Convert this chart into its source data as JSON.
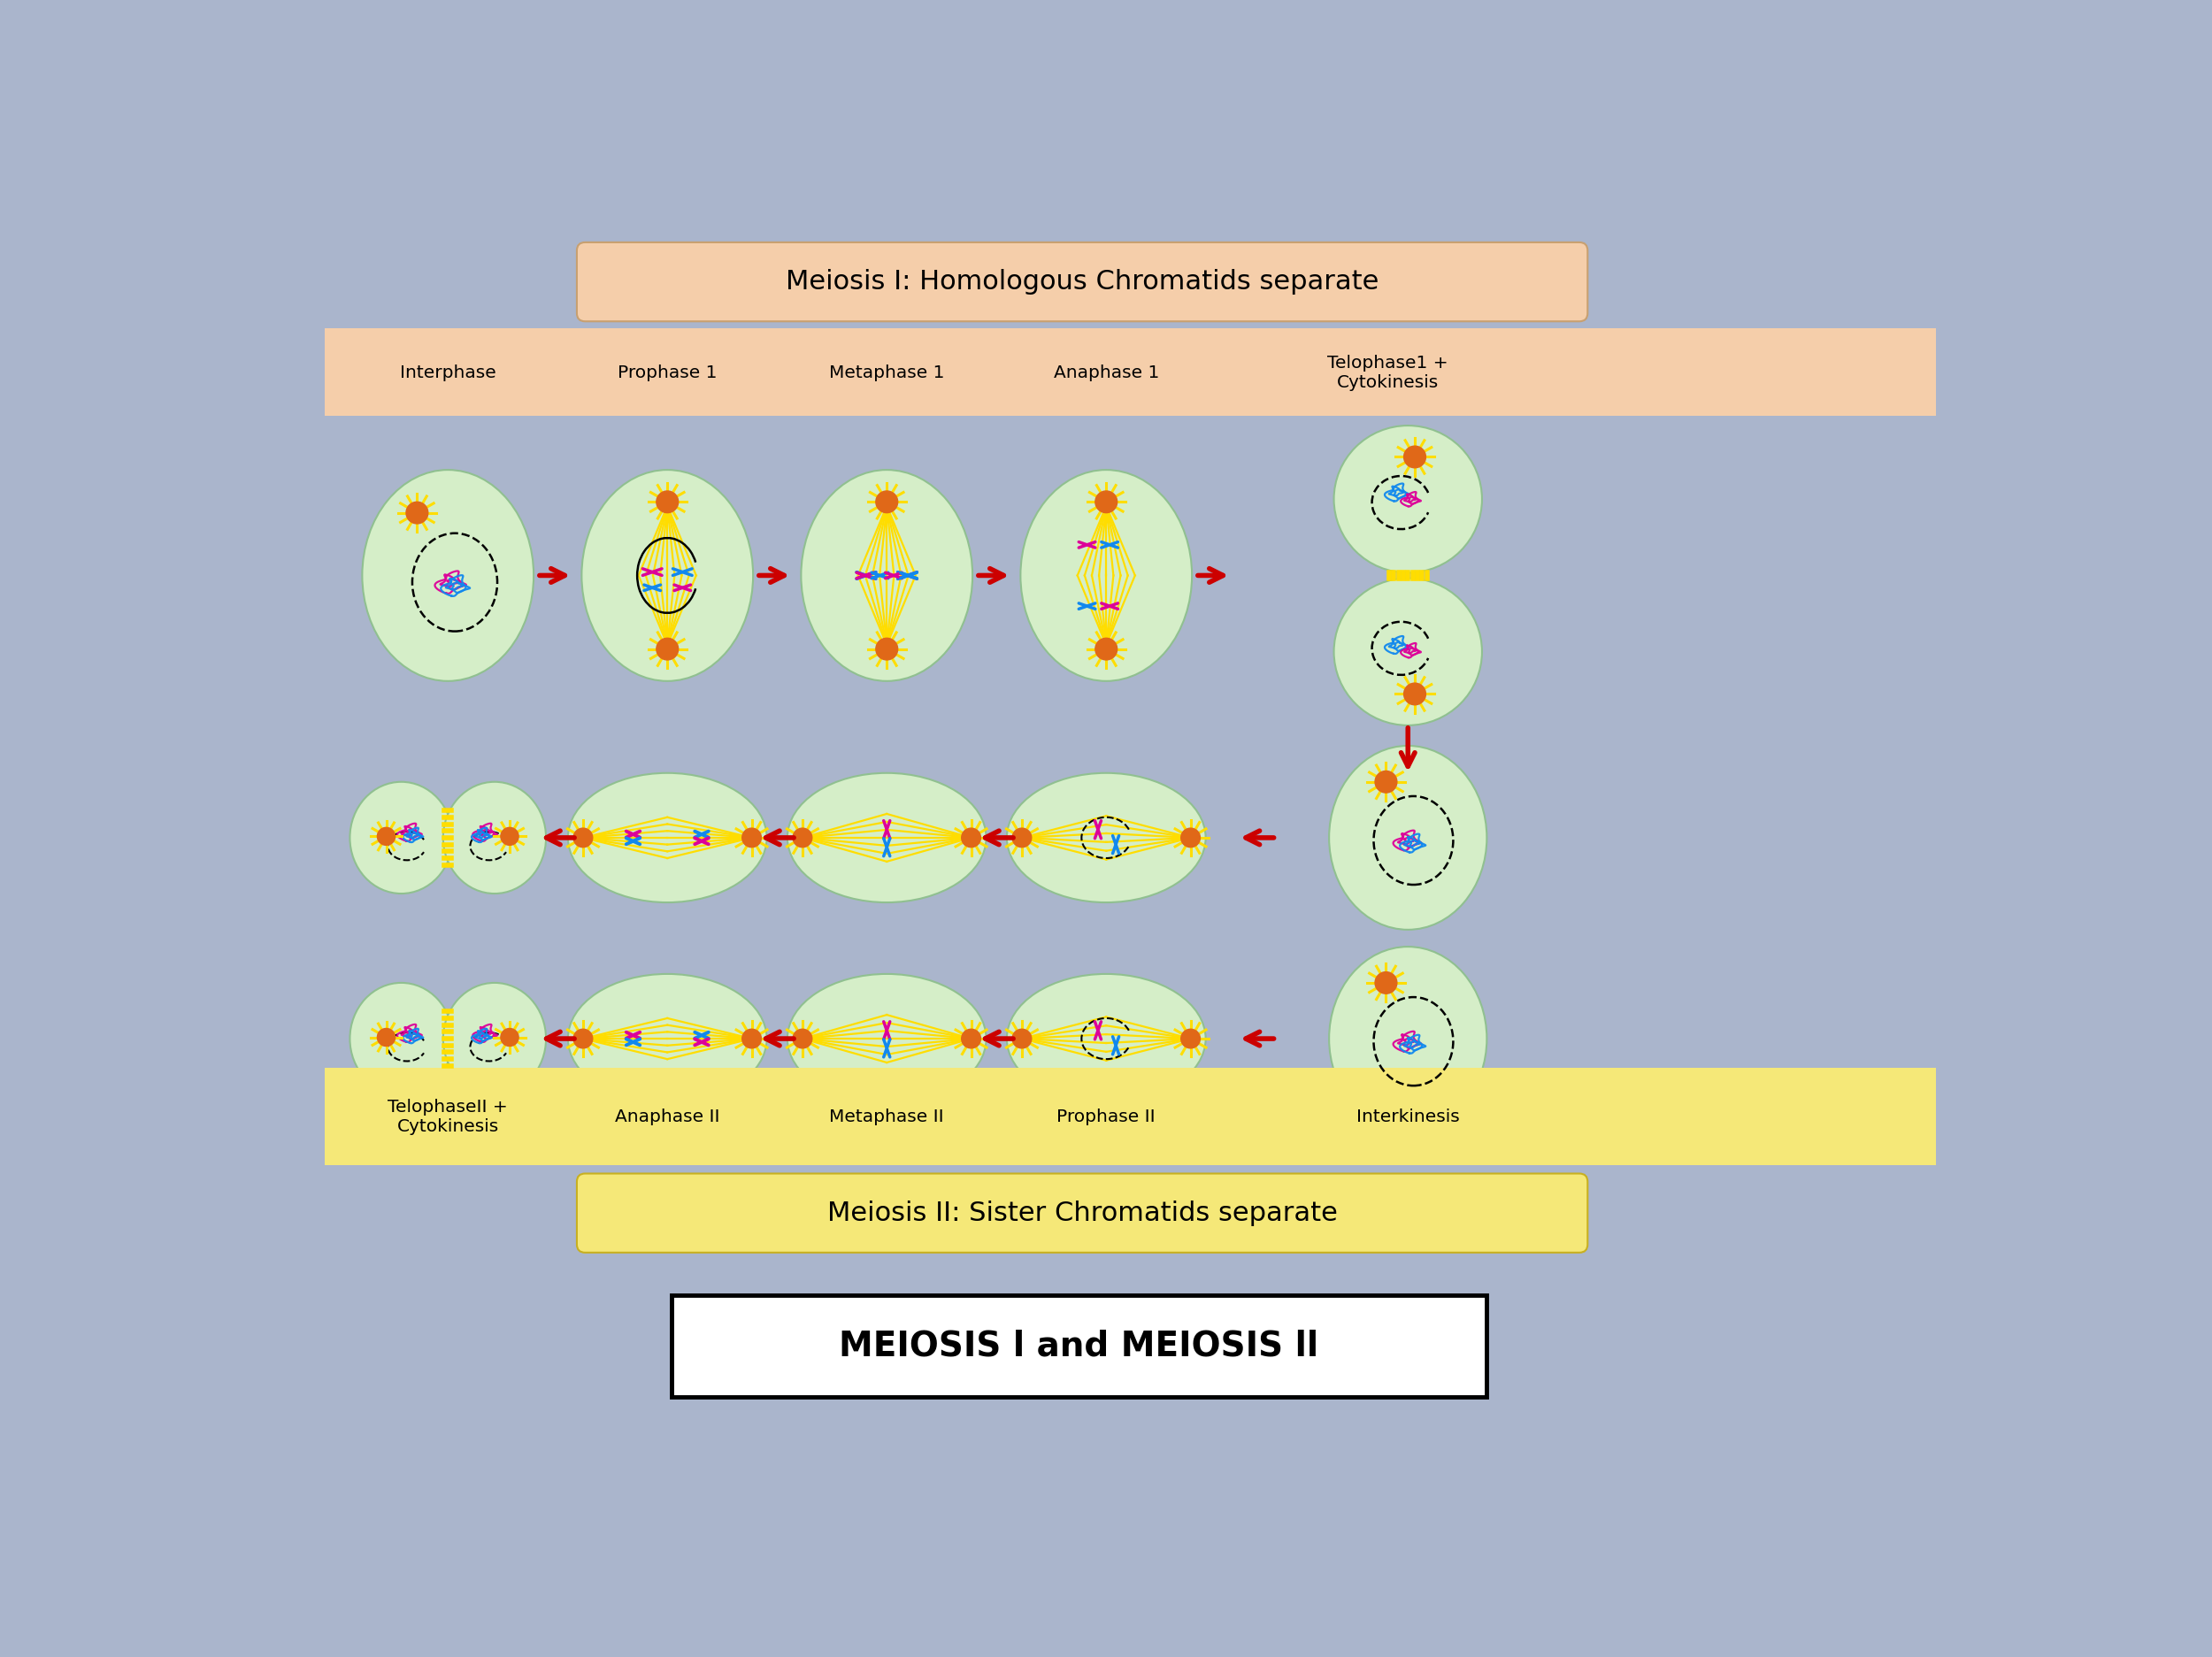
{
  "bg_color": "#aab5cc",
  "cell_color": "#d5eec8",
  "cell_edge_color": "#90c090",
  "title1_text": "Meiosis I: Homologous Chromatids separate",
  "title1_bg": "#f5ceaa",
  "title2_text": "Meiosis II: Sister Chromatids separate",
  "title2_bg": "#f5e878",
  "header1_bg": "#f5ceaa",
  "header2_bg": "#f5e878",
  "header1_labels": [
    "Interphase",
    "Prophase 1",
    "Metaphase 1",
    "Anaphase 1",
    "Telophase1 +\nCytokinesis"
  ],
  "header2_labels": [
    "TelophaseII +\nCytokinesis",
    "Anaphase II",
    "Metaphase II",
    "Prophase II",
    "Interkinesis"
  ],
  "bottom_text": "MEIOSIS l and MEIOSIS ll",
  "arrow_color": "#cc0000",
  "yellow": "#ffdd00",
  "orange": "#e06818",
  "magenta": "#dd0099",
  "blue": "#1188ee"
}
